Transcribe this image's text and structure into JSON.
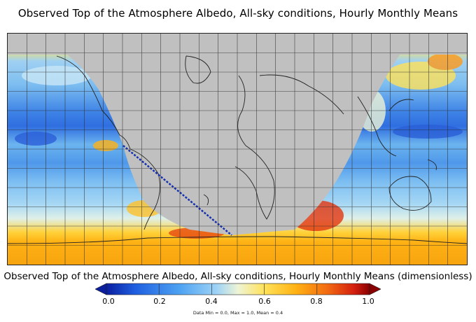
{
  "title": "Observed Top of the Atmosphere Albedo, All-sky conditions, Hourly Monthly Means",
  "colorbar": {
    "title": "Observed Top of the Atmosphere Albedo, All-sky conditions, Hourly Monthly Means (dimensionless)",
    "ticks": [
      "0.0",
      "0.2",
      "0.4",
      "0.6",
      "0.8",
      "1.0"
    ],
    "range": [
      0.0,
      1.0
    ],
    "colors": [
      "#0a1fa0",
      "#1f5fe0",
      "#4ea3f2",
      "#9fd3f6",
      "#eef4d6",
      "#ffe25a",
      "#ffb214",
      "#f26a12",
      "#d4200f",
      "#8a0000"
    ]
  },
  "stats": "Data Min = 0.0, Max = 1.0, Mean = 0.4",
  "map": {
    "no_data_color": "#c0c0c0",
    "grid_spacing_deg": 15,
    "projection": "equirectangular",
    "night_region": "no-data (grey)"
  }
}
